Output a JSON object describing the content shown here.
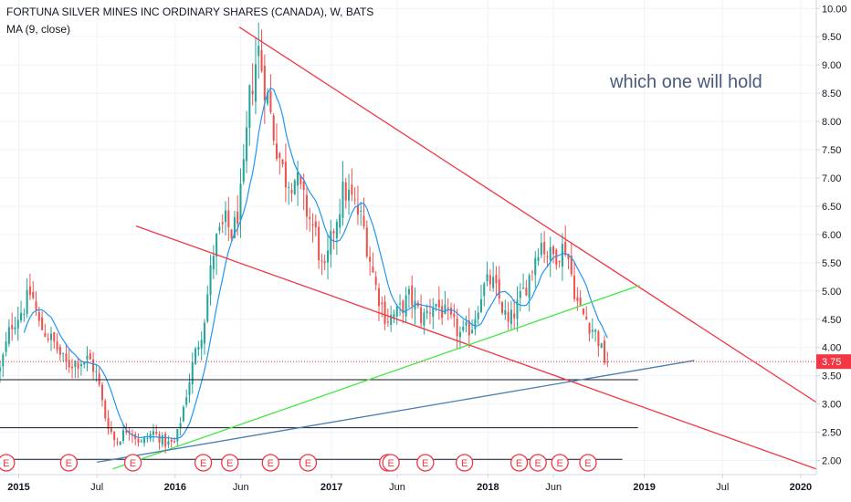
{
  "header": {
    "title": "FORTUNA SILVER MINES INC ORDINARY SHARES (CANADA), W, BATS",
    "indicator": "MA (9, close)"
  },
  "annotation": "which one will hold",
  "chart_data": {
    "type": "candlestick",
    "y_axis": {
      "min": 1.75,
      "max": 10.15,
      "ticks": [
        "2.00",
        "2.50",
        "3.00",
        "3.50",
        "4.00",
        "4.50",
        "5.00",
        "5.50",
        "6.00",
        "6.50",
        "7.00",
        "7.50",
        "8.00",
        "8.50",
        "9.00",
        "9.50",
        "10.00"
      ]
    },
    "x_axis": {
      "start_year": 2014.88,
      "end_year": 2020.1,
      "ticks": [
        {
          "label": "2015",
          "t": 2015.0
        },
        {
          "label": "Jul",
          "t": 2015.5
        },
        {
          "label": "2016",
          "t": 2016.0
        },
        {
          "label": "Jun",
          "t": 2016.42
        },
        {
          "label": "2017",
          "t": 2017.0
        },
        {
          "label": "Jun",
          "t": 2017.42
        },
        {
          "label": "2018",
          "t": 2018.0
        },
        {
          "label": "Jun",
          "t": 2018.42
        },
        {
          "label": "2019",
          "t": 2019.0
        },
        {
          "label": "Jul",
          "t": 2019.5
        },
        {
          "label": "2020",
          "t": 2020.0
        }
      ]
    },
    "price_path": [
      [
        2014.88,
        3.6
      ],
      [
        2014.95,
        4.4
      ],
      [
        2015.03,
        4.7
      ],
      [
        2015.08,
        5.0
      ],
      [
        2015.13,
        4.4
      ],
      [
        2015.22,
        4.1
      ],
      [
        2015.3,
        3.7
      ],
      [
        2015.38,
        3.75
      ],
      [
        2015.45,
        3.8
      ],
      [
        2015.5,
        3.5
      ],
      [
        2015.55,
        2.8
      ],
      [
        2015.62,
        2.3
      ],
      [
        2015.7,
        2.6
      ],
      [
        2015.78,
        2.3
      ],
      [
        2015.86,
        2.5
      ],
      [
        2015.94,
        2.3
      ],
      [
        2016.0,
        2.3
      ],
      [
        2016.05,
        2.9
      ],
      [
        2016.12,
        3.8
      ],
      [
        2016.18,
        4.4
      ],
      [
        2016.25,
        5.8
      ],
      [
        2016.32,
        6.2
      ],
      [
        2016.37,
        6.0
      ],
      [
        2016.43,
        6.8
      ],
      [
        2016.48,
        8.5
      ],
      [
        2016.53,
        9.3
      ],
      [
        2016.58,
        8.6
      ],
      [
        2016.63,
        7.8
      ],
      [
        2016.7,
        7.0
      ],
      [
        2016.77,
        7.0
      ],
      [
        2016.83,
        6.5
      ],
      [
        2016.9,
        6.0
      ],
      [
        2016.95,
        5.2
      ],
      [
        2017.02,
        6.2
      ],
      [
        2017.08,
        6.8
      ],
      [
        2017.13,
        6.6
      ],
      [
        2017.2,
        6.2
      ],
      [
        2017.28,
        5.1
      ],
      [
        2017.35,
        4.5
      ],
      [
        2017.42,
        4.6
      ],
      [
        2017.5,
        4.9
      ],
      [
        2017.58,
        4.5
      ],
      [
        2017.66,
        4.8
      ],
      [
        2017.75,
        4.5
      ],
      [
        2017.83,
        4.2
      ],
      [
        2017.9,
        4.4
      ],
      [
        2017.96,
        5.0
      ],
      [
        2018.02,
        5.2
      ],
      [
        2018.08,
        4.8
      ],
      [
        2018.13,
        4.4
      ],
      [
        2018.2,
        4.8
      ],
      [
        2018.27,
        5.3
      ],
      [
        2018.33,
        5.9
      ],
      [
        2018.4,
        5.6
      ],
      [
        2018.45,
        5.7
      ],
      [
        2018.5,
        5.8
      ],
      [
        2018.54,
        5.2
      ],
      [
        2018.58,
        4.7
      ],
      [
        2018.63,
        4.5
      ],
      [
        2018.7,
        4.2
      ],
      [
        2018.74,
        3.8
      ],
      [
        2018.77,
        3.75
      ]
    ],
    "hlines": [
      {
        "price": 3.43,
        "t1": 2014.88,
        "t2": 2018.96,
        "color": "#131722"
      },
      {
        "price": 2.58,
        "t1": 2014.88,
        "t2": 2018.96,
        "color": "#131722"
      },
      {
        "price": 2.02,
        "t1": 2014.88,
        "t2": 2018.86,
        "color": "#131722"
      }
    ],
    "trendlines": [
      {
        "color": "#f23645",
        "t1": 2016.41,
        "p1": 9.67,
        "t2": 2020.1,
        "p2": 3.03
      },
      {
        "color": "#f23645",
        "t1": 2015.75,
        "p1": 6.15,
        "t2": 2020.1,
        "p2": 1.85
      },
      {
        "color": "#45e645",
        "t1": 2015.6,
        "p1": 1.85,
        "t2": 2018.97,
        "p2": 5.1
      },
      {
        "color": "#4a7fb0",
        "t1": 2015.5,
        "p1": 1.97,
        "t2": 2019.32,
        "p2": 3.77
      }
    ],
    "current_price": {
      "value": 3.75,
      "label": "3.75",
      "color": "#f23645"
    },
    "earnings_markers": [
      {
        "t": 2014.92,
        "label": "E"
      },
      {
        "t": 2015.32,
        "label": "E"
      },
      {
        "t": 2015.73,
        "label": "E"
      },
      {
        "t": 2016.18,
        "label": "E"
      },
      {
        "t": 2016.35,
        "label": "E"
      },
      {
        "t": 2016.61,
        "label": "E"
      },
      {
        "t": 2016.85,
        "label": "E"
      },
      {
        "t": 2017.36,
        "label": "E"
      },
      {
        "t": 2017.38,
        "label": "E"
      },
      {
        "t": 2017.6,
        "label": "E"
      },
      {
        "t": 2017.85,
        "label": "E"
      },
      {
        "t": 2018.2,
        "label": "E"
      },
      {
        "t": 2018.32,
        "label": "E"
      },
      {
        "t": 2018.46,
        "label": "E"
      },
      {
        "t": 2018.64,
        "label": "E"
      }
    ],
    "colors": {
      "up": "#26a69a",
      "down": "#ef5350",
      "ma": "#2196f3"
    },
    "ma_period": 9
  }
}
